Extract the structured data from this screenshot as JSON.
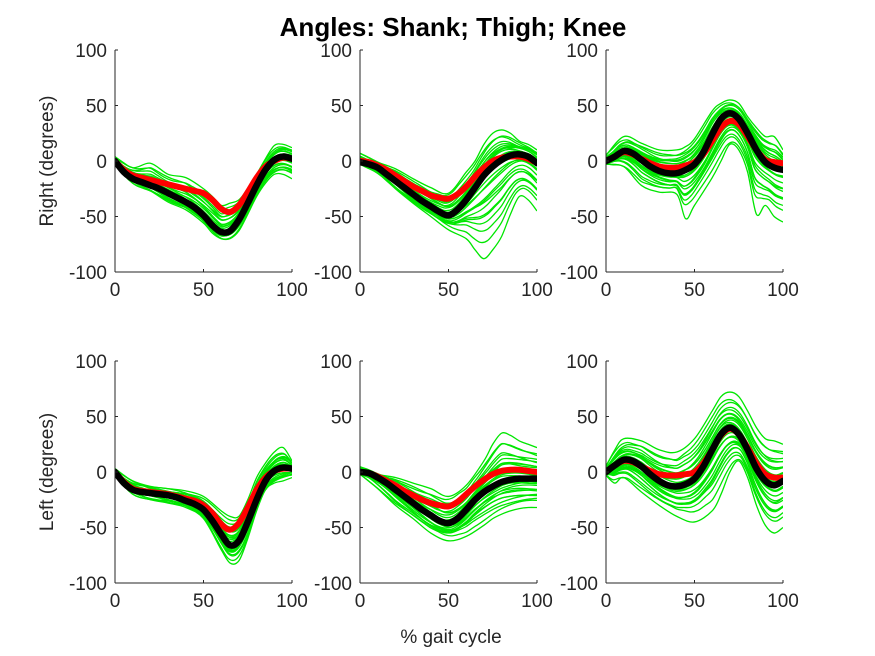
{
  "chart_data": {
    "title": "Angles: Shank; Thigh; Knee",
    "xlabel": "% gait cycle",
    "row_labels": [
      "Right (degrees)",
      "Left (degrees)"
    ],
    "xlim": [
      0,
      100
    ],
    "ylim": [
      -100,
      100
    ],
    "xticks": [
      0,
      50,
      100
    ],
    "yticks": [
      -100,
      -50,
      0,
      50,
      100
    ],
    "colors": {
      "trials": "#00e600",
      "mean_red": "#ff0000",
      "mean_black": "#000000",
      "axis": "#262626"
    },
    "panels": [
      {
        "type": "line",
        "row": "Right",
        "segment": "Shank",
        "series": [
          {
            "role": "mean-red",
            "x": [
              0,
              5,
              10,
              15,
              20,
              25,
              30,
              35,
              40,
              45,
              50,
              55,
              60,
              65,
              70,
              75,
              80,
              85,
              90,
              95,
              100
            ],
            "y": [
              0,
              -8,
              -13,
              -15,
              -17,
              -19,
              -21,
              -23,
              -25,
              -27,
              -29,
              -35,
              -43,
              -46,
              -40,
              -28,
              -15,
              -5,
              0,
              3,
              2
            ]
          },
          {
            "role": "mean-black",
            "x": [
              0,
              5,
              10,
              15,
              20,
              25,
              30,
              35,
              40,
              45,
              50,
              55,
              60,
              65,
              70,
              75,
              80,
              85,
              90,
              95,
              100
            ],
            "y": [
              0,
              -10,
              -16,
              -19,
              -22,
              -25,
              -29,
              -33,
              -37,
              -42,
              -49,
              -58,
              -64,
              -63,
              -53,
              -38,
              -22,
              -8,
              1,
              4,
              2
            ]
          }
        ],
        "trial_spread": {
          "x": [
            0,
            10,
            20,
            30,
            40,
            50,
            55,
            60,
            65,
            70,
            75,
            80,
            85,
            90,
            95,
            100
          ],
          "lower": [
            -3,
            -20,
            -27,
            -37,
            -44,
            -56,
            -65,
            -70,
            -70,
            -63,
            -48,
            -32,
            -20,
            -12,
            -12,
            -16
          ],
          "upper": [
            3,
            -6,
            -2,
            -12,
            -15,
            -25,
            -32,
            -40,
            -38,
            -35,
            -25,
            -12,
            2,
            14,
            15,
            12
          ]
        }
      },
      {
        "type": "line",
        "row": "Right",
        "segment": "Thigh",
        "series": [
          {
            "role": "mean-red",
            "x": [
              0,
              5,
              10,
              15,
              20,
              25,
              30,
              35,
              40,
              45,
              50,
              55,
              60,
              65,
              70,
              75,
              80,
              85,
              90,
              95,
              100
            ],
            "y": [
              0,
              -1,
              -4,
              -8,
              -13,
              -18,
              -23,
              -27,
              -31,
              -33,
              -34,
              -30,
              -23,
              -14,
              -6,
              0,
              3,
              4,
              4,
              2,
              -2
            ]
          },
          {
            "role": "mean-black",
            "x": [
              0,
              5,
              10,
              15,
              20,
              25,
              30,
              35,
              40,
              45,
              50,
              55,
              60,
              65,
              70,
              75,
              80,
              85,
              90,
              95,
              100
            ],
            "y": [
              -1,
              -3,
              -6,
              -12,
              -18,
              -24,
              -30,
              -36,
              -41,
              -46,
              -49,
              -44,
              -35,
              -24,
              -13,
              -5,
              1,
              5,
              6,
              4,
              -2
            ]
          }
        ],
        "trial_spread": {
          "x": [
            0,
            10,
            20,
            30,
            40,
            50,
            60,
            65,
            70,
            75,
            80,
            85,
            90,
            95,
            100
          ],
          "lower": [
            -3,
            -10,
            -25,
            -38,
            -50,
            -62,
            -70,
            -80,
            -88,
            -80,
            -68,
            -48,
            -32,
            -35,
            -45
          ],
          "upper": [
            7,
            -1,
            -7,
            -16,
            -24,
            -29,
            -10,
            0,
            15,
            25,
            28,
            25,
            18,
            15,
            10
          ]
        }
      },
      {
        "type": "line",
        "row": "Right",
        "segment": "Knee",
        "series": [
          {
            "role": "mean-red",
            "x": [
              0,
              5,
              10,
              15,
              20,
              25,
              30,
              35,
              40,
              45,
              50,
              55,
              60,
              65,
              70,
              75,
              80,
              85,
              90,
              95,
              100
            ],
            "y": [
              0,
              4,
              8,
              6,
              2,
              -2,
              -5,
              -6,
              -6,
              -4,
              -1,
              6,
              18,
              30,
              36,
              33,
              22,
              10,
              1,
              -1,
              -2
            ]
          },
          {
            "role": "mean-black",
            "x": [
              0,
              5,
              10,
              15,
              20,
              25,
              30,
              35,
              40,
              45,
              50,
              55,
              60,
              65,
              70,
              75,
              80,
              85,
              90,
              95,
              100
            ],
            "y": [
              0,
              4,
              9,
              7,
              1,
              -5,
              -9,
              -11,
              -11,
              -8,
              -3,
              8,
              24,
              38,
              43,
              38,
              25,
              10,
              -1,
              -6,
              -8
            ]
          }
        ],
        "trial_spread": {
          "x": [
            0,
            10,
            20,
            30,
            40,
            45,
            50,
            60,
            65,
            70,
            75,
            80,
            85,
            90,
            95,
            100
          ],
          "lower": [
            -3,
            -5,
            -22,
            -28,
            -30,
            -52,
            -40,
            -15,
            0,
            15,
            10,
            -10,
            -48,
            -40,
            -50,
            -55
          ],
          "upper": [
            5,
            22,
            16,
            10,
            10,
            13,
            20,
            45,
            52,
            55,
            52,
            40,
            30,
            22,
            22,
            10
          ]
        }
      },
      {
        "type": "line",
        "row": "Left",
        "segment": "Shank",
        "series": [
          {
            "role": "mean-red",
            "x": [
              0,
              5,
              10,
              15,
              20,
              25,
              30,
              35,
              40,
              45,
              50,
              55,
              60,
              65,
              70,
              75,
              80,
              85,
              90,
              95,
              100
            ],
            "y": [
              0,
              -9,
              -15,
              -17,
              -18,
              -19,
              -20,
              -22,
              -24,
              -26,
              -30,
              -37,
              -47,
              -52,
              -46,
              -32,
              -16,
              -5,
              1,
              3,
              3
            ]
          },
          {
            "role": "mean-black",
            "x": [
              0,
              5,
              10,
              15,
              20,
              25,
              30,
              35,
              40,
              45,
              50,
              55,
              60,
              65,
              70,
              75,
              80,
              85,
              90,
              95,
              100
            ],
            "y": [
              0,
              -10,
              -16,
              -18,
              -19,
              -20,
              -21,
              -23,
              -26,
              -29,
              -34,
              -44,
              -56,
              -66,
              -62,
              -45,
              -25,
              -8,
              1,
              4,
              3
            ]
          }
        ],
        "trial_spread": {
          "x": [
            0,
            10,
            20,
            30,
            40,
            50,
            60,
            65,
            70,
            75,
            80,
            85,
            90,
            95,
            100
          ],
          "lower": [
            -3,
            -20,
            -25,
            -28,
            -32,
            -42,
            -70,
            -82,
            -80,
            -60,
            -35,
            -16,
            -10,
            -8,
            -5
          ],
          "upper": [
            2,
            -8,
            -13,
            -15,
            -17,
            -22,
            -35,
            -40,
            -40,
            -25,
            -5,
            8,
            18,
            22,
            10
          ]
        }
      },
      {
        "type": "line",
        "row": "Left",
        "segment": "Thigh",
        "series": [
          {
            "role": "mean-red",
            "x": [
              0,
              5,
              10,
              15,
              20,
              25,
              30,
              35,
              40,
              45,
              50,
              55,
              60,
              65,
              70,
              75,
              80,
              85,
              90,
              95,
              100
            ],
            "y": [
              0,
              -1,
              -4,
              -8,
              -12,
              -17,
              -21,
              -25,
              -28,
              -30,
              -31,
              -27,
              -20,
              -13,
              -7,
              -2,
              1,
              2,
              2,
              1,
              0
            ]
          },
          {
            "role": "mean-black",
            "x": [
              0,
              5,
              10,
              15,
              20,
              25,
              30,
              35,
              40,
              45,
              50,
              55,
              60,
              65,
              70,
              75,
              80,
              85,
              90,
              95,
              100
            ],
            "y": [
              0,
              -1,
              -5,
              -10,
              -16,
              -22,
              -28,
              -34,
              -39,
              -44,
              -46,
              -42,
              -34,
              -25,
              -18,
              -13,
              -9,
              -7,
              -6,
              -6,
              -6
            ]
          }
        ],
        "trial_spread": {
          "x": [
            0,
            10,
            20,
            30,
            40,
            50,
            60,
            70,
            75,
            80,
            85,
            90,
            95,
            100
          ],
          "lower": [
            -2,
            -15,
            -30,
            -42,
            -55,
            -62,
            -58,
            -48,
            -42,
            -38,
            -35,
            -33,
            -32,
            -32
          ],
          "upper": [
            4,
            -2,
            -5,
            -10,
            -15,
            -22,
            -12,
            10,
            25,
            35,
            33,
            28,
            25,
            22
          ]
        }
      },
      {
        "type": "line",
        "row": "Left",
        "segment": "Knee",
        "series": [
          {
            "role": "mean-red",
            "x": [
              0,
              5,
              10,
              15,
              20,
              25,
              30,
              35,
              40,
              45,
              50,
              55,
              60,
              65,
              70,
              75,
              80,
              85,
              90,
              95,
              100
            ],
            "y": [
              0,
              6,
              10,
              9,
              5,
              1,
              -2,
              -3,
              -3,
              -2,
              0,
              8,
              20,
              33,
              39,
              34,
              22,
              8,
              -2,
              -5,
              -5
            ]
          },
          {
            "role": "mean-black",
            "x": [
              0,
              5,
              10,
              15,
              20,
              25,
              30,
              35,
              40,
              45,
              50,
              55,
              60,
              65,
              70,
              75,
              80,
              85,
              90,
              95,
              100
            ],
            "y": [
              0,
              6,
              11,
              10,
              5,
              -2,
              -8,
              -12,
              -13,
              -11,
              -6,
              5,
              20,
              34,
              40,
              34,
              20,
              3,
              -8,
              -12,
              -8
            ]
          }
        ],
        "trial_spread": {
          "x": [
            0,
            5,
            10,
            20,
            30,
            40,
            50,
            60,
            65,
            70,
            75,
            80,
            85,
            90,
            95,
            100
          ],
          "lower": [
            -3,
            -10,
            -5,
            -18,
            -30,
            -40,
            -45,
            -35,
            -20,
            0,
            10,
            -5,
            -30,
            -48,
            -55,
            -50
          ],
          "upper": [
            5,
            20,
            30,
            28,
            20,
            18,
            30,
            55,
            68,
            72,
            68,
            55,
            40,
            30,
            28,
            25
          ]
        }
      }
    ]
  }
}
